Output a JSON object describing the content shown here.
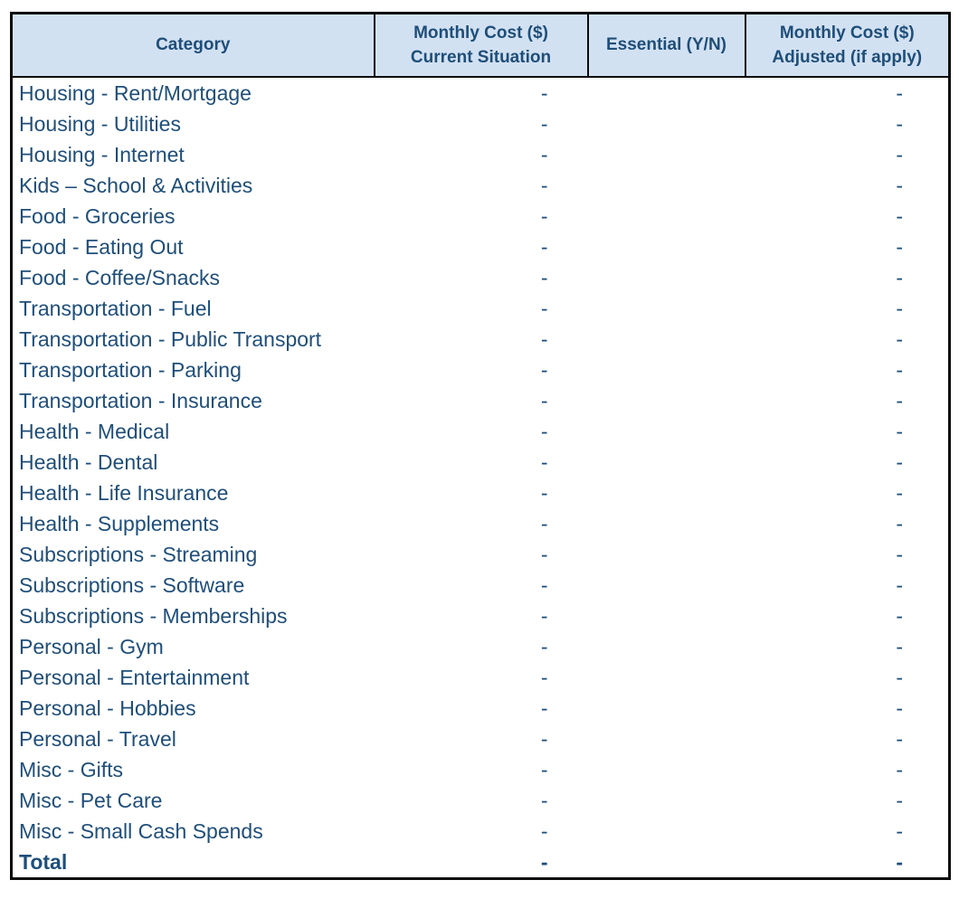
{
  "colors": {
    "header_background": "#d2e1f2",
    "text_navy": "#1f4e79",
    "border_black": "#0b0b0b",
    "page_background": "#ffffff"
  },
  "table": {
    "columns": [
      {
        "lines": [
          "Category"
        ]
      },
      {
        "lines": [
          "Monthly Cost ($)",
          "Current Situation"
        ]
      },
      {
        "lines": [
          "Essential (Y/N)"
        ]
      },
      {
        "lines": [
          "Monthly Cost ($)",
          "Adjusted (if apply)"
        ]
      }
    ],
    "rows": [
      {
        "category": "Housing - Rent/Mortgage",
        "current": "-",
        "essential": "",
        "adjusted": "-",
        "bold": false
      },
      {
        "category": "Housing - Utilities",
        "current": "-",
        "essential": "",
        "adjusted": "-",
        "bold": false
      },
      {
        "category": "Housing - Internet",
        "current": "-",
        "essential": "",
        "adjusted": "-",
        "bold": false
      },
      {
        "category": "Kids – School & Activities",
        "current": "-",
        "essential": "",
        "adjusted": "-",
        "bold": false
      },
      {
        "category": "Food - Groceries",
        "current": "-",
        "essential": "",
        "adjusted": "-",
        "bold": false
      },
      {
        "category": "Food - Eating Out",
        "current": "-",
        "essential": "",
        "adjusted": "-",
        "bold": false
      },
      {
        "category": "Food - Coffee/Snacks",
        "current": "-",
        "essential": "",
        "adjusted": "-",
        "bold": false
      },
      {
        "category": "Transportation - Fuel",
        "current": "-",
        "essential": "",
        "adjusted": "-",
        "bold": false
      },
      {
        "category": "Transportation - Public Transport",
        "current": "-",
        "essential": "",
        "adjusted": "-",
        "bold": false
      },
      {
        "category": "Transportation - Parking",
        "current": "-",
        "essential": "",
        "adjusted": "-",
        "bold": false
      },
      {
        "category": "Transportation - Insurance",
        "current": "-",
        "essential": "",
        "adjusted": "-",
        "bold": false
      },
      {
        "category": "Health - Medical",
        "current": "-",
        "essential": "",
        "adjusted": "-",
        "bold": false
      },
      {
        "category": "Health - Dental",
        "current": "-",
        "essential": "",
        "adjusted": "-",
        "bold": false
      },
      {
        "category": "Health - Life Insurance",
        "current": "-",
        "essential": "",
        "adjusted": "-",
        "bold": false
      },
      {
        "category": "Health - Supplements",
        "current": "-",
        "essential": "",
        "adjusted": "-",
        "bold": false
      },
      {
        "category": "Subscriptions - Streaming",
        "current": "-",
        "essential": "",
        "adjusted": "-",
        "bold": false
      },
      {
        "category": "Subscriptions - Software",
        "current": "-",
        "essential": "",
        "adjusted": "-",
        "bold": false
      },
      {
        "category": "Subscriptions - Memberships",
        "current": "-",
        "essential": "",
        "adjusted": "-",
        "bold": false
      },
      {
        "category": "Personal - Gym",
        "current": "-",
        "essential": "",
        "adjusted": "-",
        "bold": false
      },
      {
        "category": "Personal - Entertainment",
        "current": "-",
        "essential": "",
        "adjusted": "-",
        "bold": false
      },
      {
        "category": "Personal - Hobbies",
        "current": "-",
        "essential": "",
        "adjusted": "-",
        "bold": false
      },
      {
        "category": "Personal - Travel",
        "current": "-",
        "essential": "",
        "adjusted": "-",
        "bold": false
      },
      {
        "category": "Misc - Gifts",
        "current": "-",
        "essential": "",
        "adjusted": "-",
        "bold": false
      },
      {
        "category": "Misc - Pet Care",
        "current": "-",
        "essential": "",
        "adjusted": "-",
        "bold": false
      },
      {
        "category": "Misc - Small Cash Spends",
        "current": "-",
        "essential": "",
        "adjusted": "-",
        "bold": false
      },
      {
        "category": "Total",
        "current": "-",
        "essential": "",
        "adjusted": "-",
        "bold": true
      }
    ]
  }
}
